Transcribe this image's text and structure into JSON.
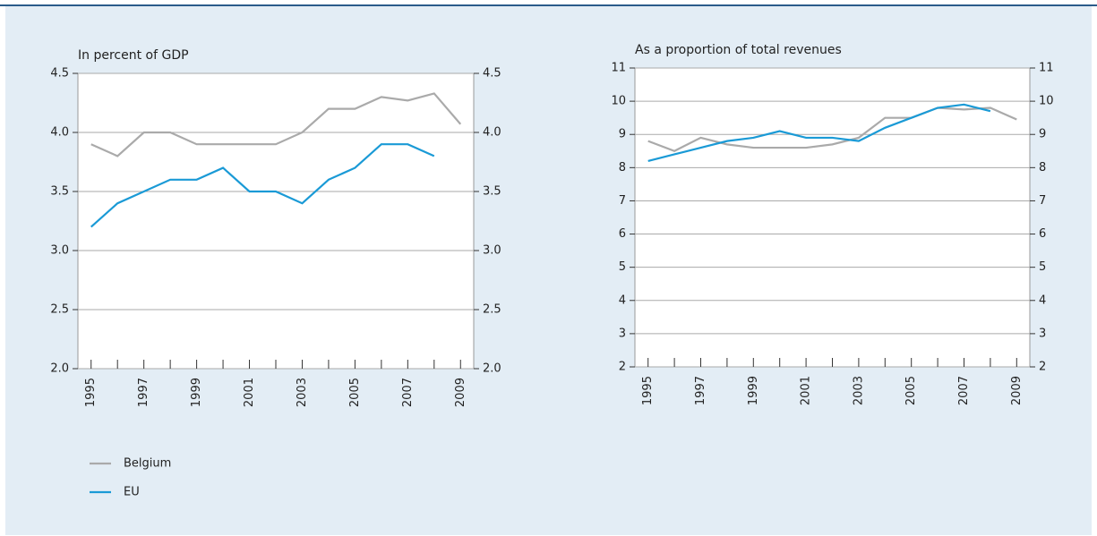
{
  "chart_data": [
    {
      "type": "line",
      "title": "In percent of GDP",
      "x": [
        1995,
        1996,
        1997,
        1998,
        1999,
        2000,
        2001,
        2002,
        2003,
        2004,
        2005,
        2006,
        2007,
        2008,
        2009
      ],
      "xlim": [
        1994.5,
        2009.5
      ],
      "xticks": [
        1995,
        1997,
        1999,
        2001,
        2003,
        2005,
        2007,
        2009
      ],
      "ylim": [
        2,
        4.5
      ],
      "yticks": [
        {
          "value": 2,
          "label": "2.0"
        },
        2.5,
        {
          "value": 3,
          "label": "3.0"
        },
        3.5,
        {
          "value": 4,
          "label": "4.0"
        },
        4.5
      ],
      "grid": true,
      "series": [
        {
          "name": "Belgium",
          "color": "#aaaaaa",
          "values": [
            3.9,
            3.8,
            4.0,
            4.0,
            3.9,
            3.9,
            3.9,
            3.9,
            4.0,
            4.2,
            4.2,
            4.3,
            4.27,
            4.33,
            4.07
          ]
        },
        {
          "name": "EU",
          "color": "#1a9ad6",
          "values": [
            3.2,
            3.4,
            3.5,
            3.6,
            3.6,
            3.7,
            3.5,
            3.5,
            3.4,
            3.6,
            3.7,
            3.9,
            3.9,
            3.8,
            null
          ]
        }
      ]
    },
    {
      "type": "line",
      "title": "As a proportion of total revenues",
      "x": [
        1995,
        1996,
        1997,
        1998,
        1999,
        2000,
        2001,
        2002,
        2003,
        2004,
        2005,
        2006,
        2007,
        2008,
        2009
      ],
      "xlim": [
        1994.5,
        2009.5
      ],
      "xticks": [
        1995,
        1997,
        1999,
        2001,
        2003,
        2005,
        2007,
        2009
      ],
      "ylim": [
        2,
        11
      ],
      "yticks": [
        2,
        3,
        4,
        5,
        6,
        7,
        8,
        9,
        10,
        11
      ],
      "grid": true,
      "series": [
        {
          "color": "#aaaaaa",
          "values": [
            8.8,
            8.5,
            8.9,
            8.7,
            8.6,
            8.6,
            8.6,
            8.7,
            8.9,
            9.5,
            9.5,
            9.8,
            9.75,
            9.8,
            9.45
          ]
        },
        {
          "color": "#1a9ad6",
          "values": [
            8.2,
            8.4,
            8.6,
            8.8,
            8.9,
            9.1,
            8.9,
            8.9,
            8.8,
            9.2,
            9.5,
            9.8,
            9.9,
            9.7,
            null
          ]
        }
      ]
    }
  ]
}
